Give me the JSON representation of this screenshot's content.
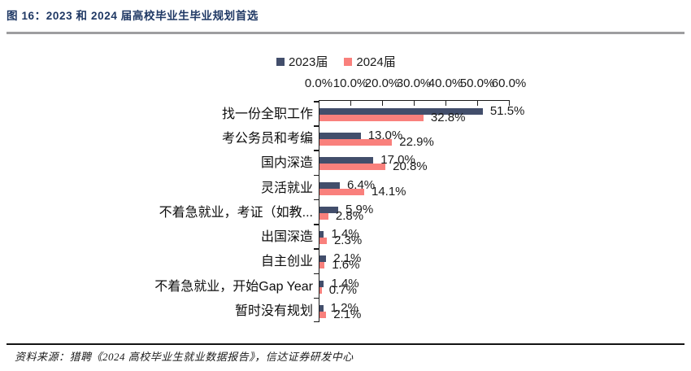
{
  "figure": {
    "title": "图 16：2023 和 2024 届高校毕业生毕业规划首选",
    "source": "资料来源：猎聘《2024 高校毕业生就业数据报告》，信达证券研发中心"
  },
  "chart_data": {
    "type": "bar",
    "orientation": "horizontal",
    "title": "",
    "legend_position": "top",
    "grid": false,
    "categories": [
      "找一份全职工作",
      "考公务员和考编",
      "国内深造",
      "灵活就业",
      "不着急就业，考证（如教...",
      "出国深造",
      "自主创业",
      "不着急就业，开始Gap Year",
      "暂时没有规划"
    ],
    "series": [
      {
        "name": "2023届",
        "color": "#424e6b",
        "values": [
          51.5,
          13.0,
          17.0,
          6.4,
          5.9,
          1.4,
          2.1,
          1.4,
          1.2
        ]
      },
      {
        "name": "2024届",
        "color": "#f9807c",
        "values": [
          32.8,
          22.9,
          20.8,
          14.1,
          2.8,
          2.3,
          1.6,
          0.7,
          2.1
        ]
      }
    ],
    "x_axis": {
      "min": 0,
      "max": 60,
      "ticks": [
        "0.0%",
        "10.0%",
        "20.0%",
        "30.0%",
        "40.0%",
        "50.0%",
        "60.0%"
      ]
    }
  }
}
